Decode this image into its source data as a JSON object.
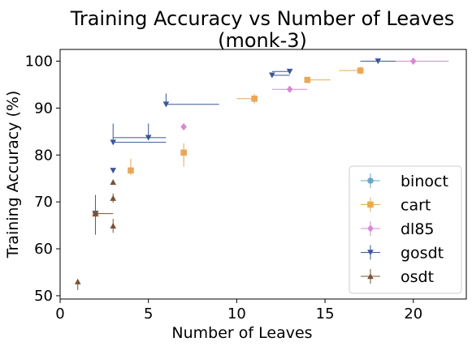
{
  "chart_data": {
    "type": "scatter",
    "title_line1": "Training Accuracy vs Number of Leaves",
    "title_line2": "(monk-3)",
    "xlabel": "Number of Leaves",
    "ylabel": "Training Accuracy (%)",
    "xlim": [
      0,
      23
    ],
    "ylim": [
      49.3,
      102.5
    ],
    "xticks": [
      0,
      5,
      10,
      15,
      20
    ],
    "yticks": [
      50,
      60,
      70,
      80,
      90,
      100
    ],
    "grid": false,
    "legend_position": "lower-right",
    "series": [
      {
        "name": "binoct",
        "color": "#6aa8c8",
        "marker": "circle",
        "points": []
      },
      {
        "name": "cart",
        "color": "#e8a857",
        "marker": "square",
        "points": [
          {
            "x": 2,
            "y": 67.5,
            "xerr": [
              0,
              0
            ],
            "yerr": [
              0,
              0
            ]
          },
          {
            "x": 4,
            "y": 76.7,
            "xerr": [
              0,
              0
            ],
            "yerr": [
              1.0,
              2.5
            ]
          },
          {
            "x": 7,
            "y": 80.5,
            "xerr": [
              0,
              0
            ],
            "yerr": [
              3.0,
              2.0
            ]
          },
          {
            "x": 11,
            "y": 92.0,
            "xerr": [
              1.0,
              0
            ],
            "yerr": [
              1.0,
              1.0
            ]
          },
          {
            "x": 14,
            "y": 96.0,
            "xerr": [
              0,
              1.3
            ],
            "yerr": [
              0.5,
              0.5
            ]
          },
          {
            "x": 17,
            "y": 98.0,
            "xerr": [
              1.2,
              0
            ],
            "yerr": [
              0.8,
              0.8
            ]
          }
        ]
      },
      {
        "name": "dl85",
        "color": "#d887d6",
        "marker": "diamond",
        "points": [
          {
            "x": 2,
            "y": 67.5,
            "xerr": [
              0,
              0
            ],
            "yerr": [
              0,
              0
            ]
          },
          {
            "x": 7,
            "y": 86.0,
            "xerr": [
              0,
              0
            ],
            "yerr": [
              0,
              0
            ]
          },
          {
            "x": 13,
            "y": 94.0,
            "xerr": [
              1.0,
              1.0
            ],
            "yerr": [
              0,
              0
            ]
          },
          {
            "x": 20,
            "y": 100.0,
            "xerr": [
              2.0,
              2.0
            ],
            "yerr": [
              0,
              0
            ]
          }
        ]
      },
      {
        "name": "gosdt",
        "color": "#3a5897",
        "marker": "triangle-down",
        "points": [
          {
            "x": 2,
            "y": 67.5,
            "xerr": [
              0,
              0
            ],
            "yerr": [
              0,
              0
            ]
          },
          {
            "x": 3,
            "y": 76.7,
            "xerr": [
              0,
              0
            ],
            "yerr": [
              0,
              0
            ]
          },
          {
            "x": 3,
            "y": 82.7,
            "xerr": [
              0,
              3.0
            ],
            "yerr": [
              0,
              4.0
            ]
          },
          {
            "x": 5,
            "y": 83.7,
            "xerr": [
              2.0,
              1.0
            ],
            "yerr": [
              0,
              3.0
            ]
          },
          {
            "x": 6,
            "y": 90.8,
            "xerr": [
              0,
              3.0
            ],
            "yerr": [
              0,
              2.3
            ]
          },
          {
            "x": 12,
            "y": 97.0,
            "xerr": [
              0,
              1.0
            ],
            "yerr": [
              0,
              0
            ]
          },
          {
            "x": 13,
            "y": 97.8,
            "xerr": [
              1.0,
              0
            ],
            "yerr": [
              0,
              0
            ]
          },
          {
            "x": 18,
            "y": 100.0,
            "xerr": [
              1.0,
              1.0
            ],
            "yerr": [
              0,
              0
            ]
          }
        ]
      },
      {
        "name": "osdt",
        "color": "#7a5234",
        "marker": "triangle-up",
        "points": [
          {
            "x": 1,
            "y": 53.0,
            "xerr": [
              0,
              0
            ],
            "yerr": [
              1.8,
              0
            ]
          },
          {
            "x": 2,
            "y": 67.5,
            "xerr": [
              0,
              1.0
            ],
            "yerr": [
              4.5,
              4.0
            ]
          },
          {
            "x": 3,
            "y": 64.9,
            "xerr": [
              0,
              0
            ],
            "yerr": [
              1.5,
              1.5
            ]
          },
          {
            "x": 3,
            "y": 70.8,
            "xerr": [
              0,
              0
            ],
            "yerr": [
              1.0,
              1.0
            ]
          },
          {
            "x": 3,
            "y": 74.2,
            "xerr": [
              0,
              0
            ],
            "yerr": [
              0,
              0
            ]
          }
        ]
      }
    ]
  }
}
